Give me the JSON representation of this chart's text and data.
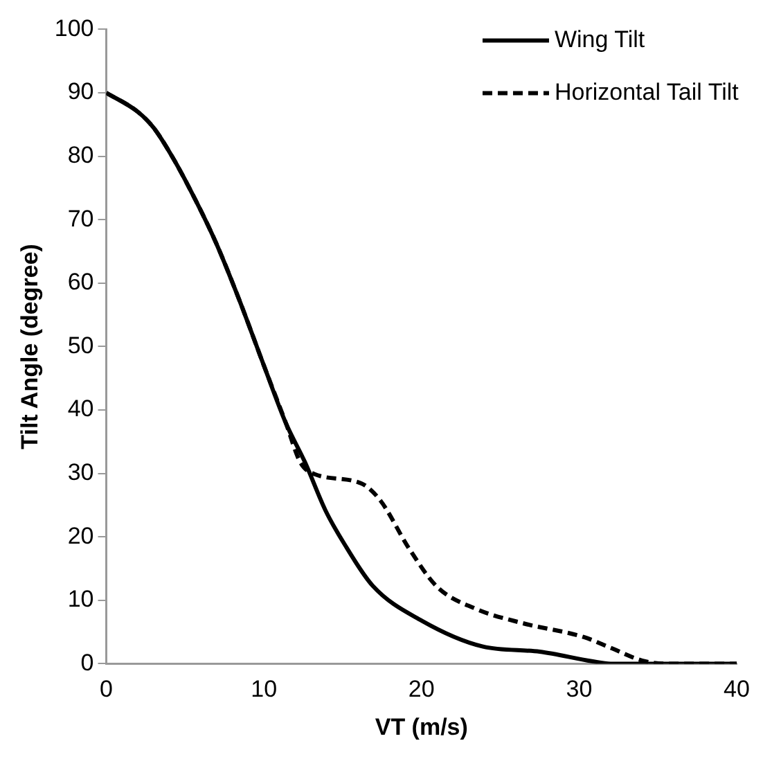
{
  "chart_data": {
    "type": "line",
    "xlabel": "VT (m/s)",
    "ylabel": "Tilt Angle (degree)",
    "xlim": [
      0,
      40
    ],
    "xticks": [
      0,
      10,
      20,
      30,
      40
    ],
    "ylim": [
      0,
      100
    ],
    "yticks": [
      0,
      10,
      20,
      30,
      40,
      50,
      60,
      70,
      80,
      90,
      100
    ],
    "grid": false,
    "legend": "top right",
    "marker": "none",
    "series": [
      {
        "name": "Wing Tilt",
        "color": "#000000",
        "line_style": "solid",
        "x": [
          0,
          2,
          3,
          4,
          5.1,
          6.9,
          8.4,
          10,
          11.4,
          12.6,
          13.9,
          15.1,
          16.9,
          20,
          23.9,
          27.5,
          30.8,
          32,
          40
        ],
        "values": [
          90,
          87,
          84.5,
          80.7,
          75.8,
          66.7,
          57.6,
          47,
          37.9,
          31.8,
          24.2,
          18.9,
          12.3,
          6.8,
          2.7,
          1.9,
          0.4,
          0,
          0
        ]
      },
      {
        "name": "Horizontal Tail Tilt",
        "color": "#000000",
        "line_style": "dashed",
        "x": [
          0,
          2,
          3,
          4,
          5.1,
          6.9,
          8.4,
          10,
          11.4,
          12.3,
          13.2,
          16.2,
          17.4,
          19.2,
          21,
          23.4,
          26.4,
          30.3,
          32,
          34,
          35.5,
          40
        ],
        "values": [
          90,
          87,
          84.5,
          80.7,
          75.8,
          66.7,
          57.6,
          47,
          37.9,
          31.8,
          29.9,
          28.4,
          25.7,
          18.2,
          12.1,
          8.7,
          6.4,
          4.2,
          2.5,
          0.5,
          0,
          0
        ]
      }
    ]
  }
}
